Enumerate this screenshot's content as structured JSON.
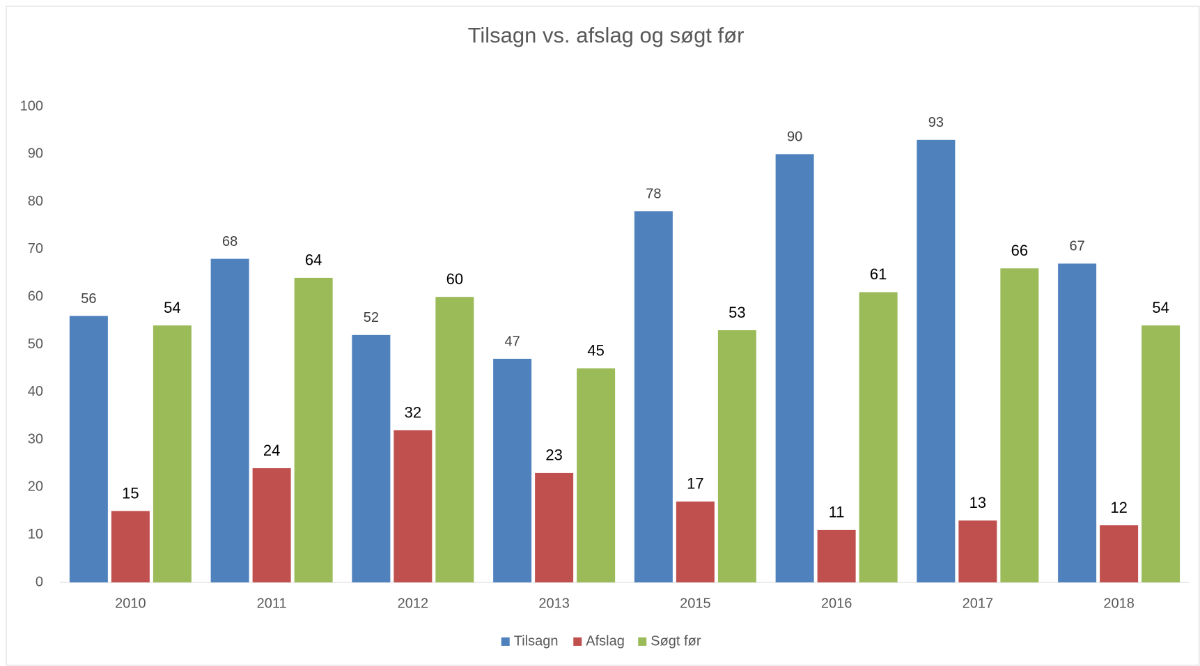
{
  "chart_data": {
    "type": "bar",
    "title": "Tilsagn vs. afslag og søgt før",
    "categories": [
      "2010",
      "2011",
      "2012",
      "2013",
      "2015",
      "2016",
      "2017",
      "2018"
    ],
    "series": [
      {
        "name": "Tilsagn",
        "color": "#4f81bd",
        "values": [
          56,
          68,
          52,
          47,
          78,
          90,
          93,
          67
        ]
      },
      {
        "name": "Afslag",
        "color": "#c0504d",
        "values": [
          15,
          24,
          32,
          23,
          17,
          11,
          13,
          12
        ]
      },
      {
        "name": "Søgt før",
        "color": "#9bbb59",
        "values": [
          54,
          64,
          60,
          45,
          53,
          61,
          66,
          54
        ]
      }
    ],
    "ylim": [
      0,
      100
    ],
    "yticks": [
      0,
      10,
      20,
      30,
      40,
      50,
      60,
      70,
      80,
      90,
      100
    ],
    "grid": false,
    "legend": "bottom"
  }
}
